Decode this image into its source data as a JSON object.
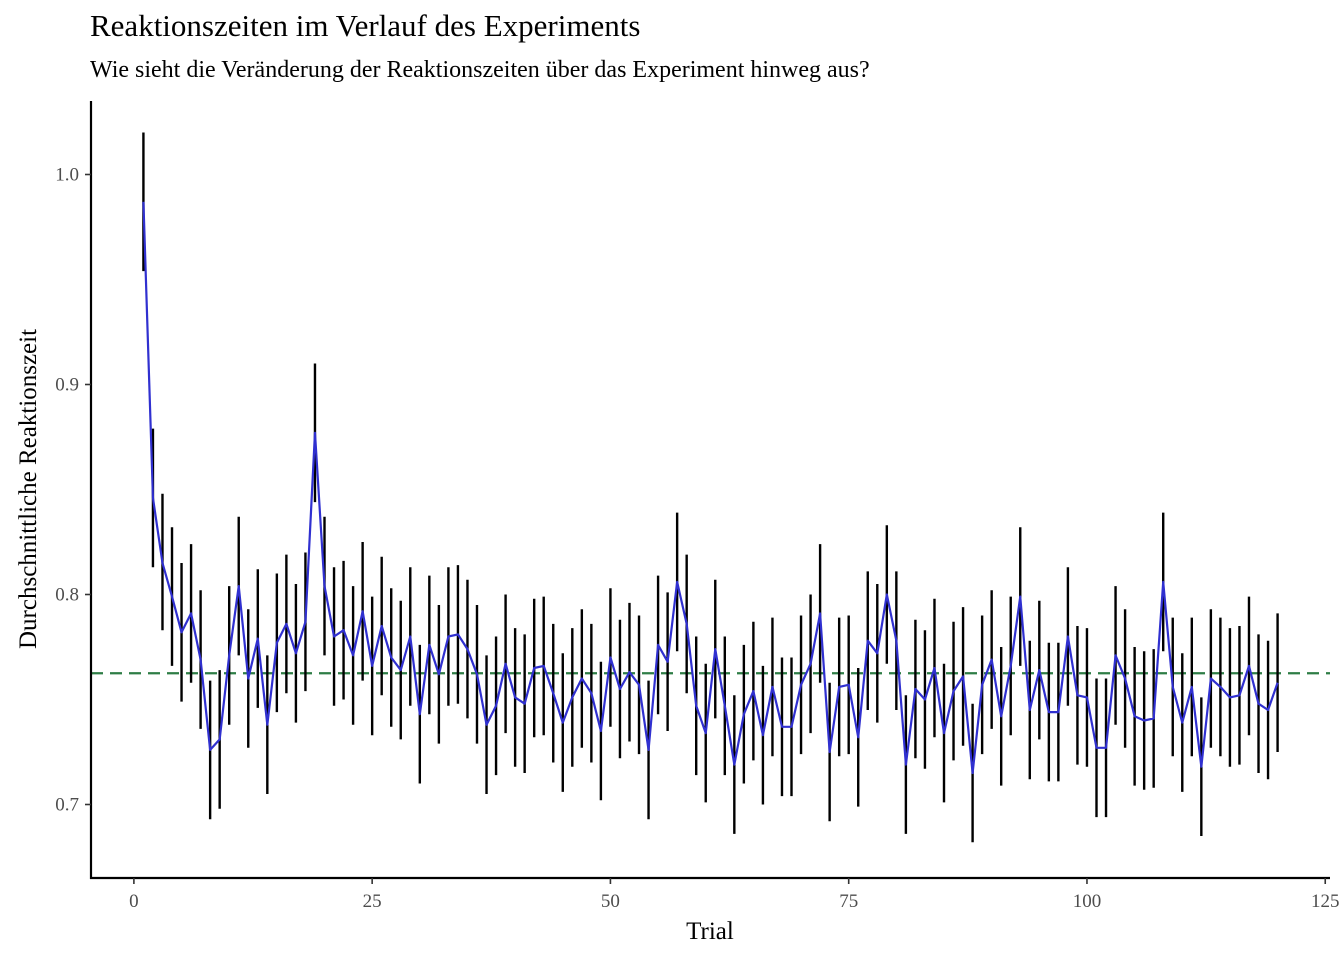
{
  "chart_data": {
    "type": "line",
    "title": "Reaktionszeiten im Verlauf des Experiments",
    "subtitle": "Wie sieht die Veränderung der Reaktionszeiten über das Experiment hinweg aus?",
    "xlabel": "Trial",
    "ylabel": "Durchschnittliche Reaktionszeit",
    "xlim": [
      -4.5,
      125.5
    ],
    "ylim": [
      0.665,
      1.035
    ],
    "xticks": [
      0,
      25,
      50,
      75,
      100,
      125
    ],
    "yticks": [
      0.7,
      0.8,
      0.9,
      1.0
    ],
    "xtick_labels": [
      "0",
      "25",
      "50",
      "75",
      "100",
      "125"
    ],
    "ytick_labels": [
      "0.7",
      "0.8",
      "0.9",
      "1.0"
    ],
    "grid": false,
    "legend": "none",
    "mean_line": {
      "y": 0.7625,
      "style": "dashed",
      "color": "#2e7d46"
    },
    "line_color": "#3030d0",
    "errorbar_color": "#000000",
    "x": [
      1,
      2,
      3,
      4,
      5,
      6,
      7,
      8,
      9,
      10,
      11,
      12,
      13,
      14,
      15,
      16,
      17,
      18,
      19,
      20,
      21,
      22,
      23,
      24,
      25,
      26,
      27,
      28,
      29,
      30,
      31,
      32,
      33,
      34,
      35,
      36,
      37,
      38,
      39,
      40,
      41,
      42,
      43,
      44,
      45,
      46,
      47,
      48,
      49,
      50,
      51,
      52,
      53,
      54,
      55,
      56,
      57,
      58,
      59,
      60,
      61,
      62,
      63,
      64,
      65,
      66,
      67,
      68,
      69,
      70,
      71,
      72,
      73,
      74,
      75,
      76,
      77,
      78,
      79,
      80,
      81,
      82,
      83,
      84,
      85,
      86,
      87,
      88,
      89,
      90,
      91,
      92,
      93,
      94,
      95,
      96,
      97,
      98,
      99,
      100,
      101,
      102,
      103,
      104,
      105,
      106,
      107,
      108,
      109,
      110,
      111,
      112,
      113,
      114,
      115,
      116,
      117,
      118,
      119,
      120
    ],
    "series": [
      {
        "values": [
          0.987,
          0.846,
          0.815,
          0.799,
          0.782,
          0.791,
          0.769,
          0.726,
          0.731,
          0.771,
          0.804,
          0.76,
          0.779,
          0.738,
          0.777,
          0.786,
          0.772,
          0.787,
          0.877,
          0.804,
          0.78,
          0.783,
          0.771,
          0.792,
          0.766,
          0.785,
          0.77,
          0.764,
          0.78,
          0.743,
          0.776,
          0.762,
          0.78,
          0.781,
          0.774,
          0.762,
          0.738,
          0.747,
          0.767,
          0.751,
          0.748,
          0.765,
          0.766,
          0.753,
          0.739,
          0.751,
          0.76,
          0.753,
          0.735,
          0.77,
          0.755,
          0.763,
          0.757,
          0.726,
          0.776,
          0.768,
          0.806,
          0.786,
          0.747,
          0.734,
          0.774,
          0.747,
          0.719,
          0.743,
          0.754,
          0.733,
          0.756,
          0.737,
          0.737,
          0.757,
          0.767,
          0.791,
          0.725,
          0.756,
          0.757,
          0.732,
          0.778,
          0.772,
          0.8,
          0.778,
          0.719,
          0.755,
          0.75,
          0.765,
          0.734,
          0.754,
          0.761,
          0.715,
          0.757,
          0.769,
          0.742,
          0.766,
          0.799,
          0.745,
          0.764,
          0.744,
          0.744,
          0.78,
          0.752,
          0.751,
          0.727,
          0.727,
          0.771,
          0.76,
          0.742,
          0.74,
          0.741,
          0.806,
          0.756,
          0.739,
          0.756,
          0.718,
          0.76,
          0.756,
          0.751,
          0.752,
          0.766,
          0.748,
          0.745,
          0.758
        ],
        "lower": [
          0.954,
          0.813,
          0.783,
          0.766,
          0.749,
          0.758,
          0.736,
          0.693,
          0.698,
          0.738,
          0.771,
          0.727,
          0.746,
          0.705,
          0.744,
          0.753,
          0.739,
          0.754,
          0.844,
          0.771,
          0.747,
          0.75,
          0.738,
          0.759,
          0.733,
          0.752,
          0.737,
          0.731,
          0.747,
          0.71,
          0.743,
          0.729,
          0.747,
          0.748,
          0.741,
          0.729,
          0.705,
          0.714,
          0.734,
          0.718,
          0.715,
          0.732,
          0.733,
          0.72,
          0.706,
          0.718,
          0.727,
          0.72,
          0.702,
          0.737,
          0.722,
          0.73,
          0.724,
          0.693,
          0.743,
          0.735,
          0.773,
          0.753,
          0.714,
          0.701,
          0.741,
          0.714,
          0.686,
          0.71,
          0.721,
          0.7,
          0.723,
          0.704,
          0.704,
          0.724,
          0.734,
          0.758,
          0.692,
          0.723,
          0.724,
          0.699,
          0.745,
          0.739,
          0.767,
          0.745,
          0.686,
          0.722,
          0.717,
          0.732,
          0.701,
          0.721,
          0.728,
          0.682,
          0.724,
          0.736,
          0.709,
          0.733,
          0.766,
          0.712,
          0.731,
          0.711,
          0.711,
          0.747,
          0.719,
          0.718,
          0.694,
          0.694,
          0.738,
          0.727,
          0.709,
          0.707,
          0.708,
          0.773,
          0.723,
          0.706,
          0.723,
          0.685,
          0.727,
          0.723,
          0.718,
          0.719,
          0.733,
          0.715,
          0.712,
          0.725
        ],
        "upper": [
          1.02,
          0.879,
          0.848,
          0.832,
          0.815,
          0.824,
          0.802,
          0.759,
          0.764,
          0.804,
          0.837,
          0.793,
          0.812,
          0.771,
          0.81,
          0.819,
          0.805,
          0.82,
          0.91,
          0.837,
          0.813,
          0.816,
          0.804,
          0.825,
          0.799,
          0.818,
          0.803,
          0.797,
          0.813,
          0.776,
          0.809,
          0.795,
          0.813,
          0.814,
          0.807,
          0.795,
          0.771,
          0.78,
          0.8,
          0.784,
          0.781,
          0.798,
          0.799,
          0.786,
          0.772,
          0.784,
          0.793,
          0.786,
          0.768,
          0.803,
          0.788,
          0.796,
          0.79,
          0.759,
          0.809,
          0.801,
          0.839,
          0.819,
          0.78,
          0.767,
          0.807,
          0.78,
          0.752,
          0.776,
          0.787,
          0.766,
          0.789,
          0.77,
          0.77,
          0.79,
          0.8,
          0.824,
          0.758,
          0.789,
          0.79,
          0.765,
          0.811,
          0.805,
          0.833,
          0.811,
          0.752,
          0.788,
          0.783,
          0.798,
          0.767,
          0.787,
          0.794,
          0.748,
          0.79,
          0.802,
          0.775,
          0.799,
          0.832,
          0.778,
          0.797,
          0.777,
          0.777,
          0.813,
          0.785,
          0.784,
          0.76,
          0.76,
          0.804,
          0.793,
          0.775,
          0.773,
          0.774,
          0.839,
          0.789,
          0.772,
          0.789,
          0.751,
          0.793,
          0.789,
          0.784,
          0.785,
          0.799,
          0.781,
          0.778,
          0.791
        ]
      }
    ]
  }
}
